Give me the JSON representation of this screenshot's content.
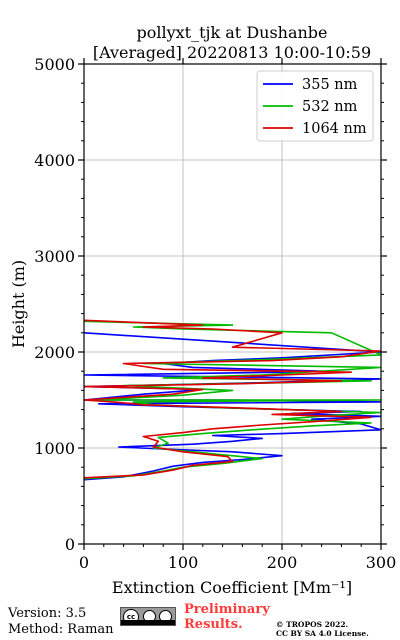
{
  "chart_data": {
    "type": "line",
    "title_line1": "pollyxt_tjk at Dushanbe",
    "title_line2": "[Averaged] 20220813 10:00-10:59",
    "xlabel": "Extinction Coefficient [Mm⁻¹]",
    "ylabel": "Height (m)",
    "xlim": [
      0,
      300
    ],
    "ylim": [
      0,
      5000
    ],
    "x_ticks": [
      "0",
      "100",
      "200",
      "300"
    ],
    "y_ticks": [
      "0",
      "1000",
      "2000",
      "3000",
      "4000",
      "5000"
    ],
    "grid": true,
    "legend_position": "top-right",
    "series": [
      {
        "name": "355 nm",
        "color": "#0000ff",
        "points": [
          [
            0,
            670
          ],
          [
            40,
            700
          ],
          [
            70,
            760
          ],
          [
            90,
            810
          ],
          [
            120,
            850
          ],
          [
            160,
            880
          ],
          [
            200,
            920
          ],
          [
            150,
            960
          ],
          [
            80,
            990
          ],
          [
            35,
            1010
          ],
          [
            110,
            1040
          ],
          [
            150,
            1070
          ],
          [
            180,
            1100
          ],
          [
            130,
            1130
          ],
          [
            200,
            1150
          ],
          [
            250,
            1170
          ],
          [
            300,
            1190
          ],
          [
            280,
            1250
          ],
          [
            230,
            1300
          ],
          [
            300,
            1330
          ],
          [
            210,
            1360
          ],
          [
            280,
            1380
          ],
          [
            170,
            1410
          ],
          [
            100,
            1430
          ],
          [
            15,
            1460
          ],
          [
            300,
            1480
          ],
          [
            150,
            1500
          ],
          [
            0,
            1500
          ],
          [
            60,
            1560
          ],
          [
            120,
            1610
          ],
          [
            0,
            1640
          ],
          [
            180,
            1680
          ],
          [
            300,
            1720
          ],
          [
            0,
            1760
          ],
          [
            200,
            1790
          ],
          [
            240,
            1800
          ],
          [
            110,
            1840
          ],
          [
            80,
            1880
          ],
          [
            130,
            1910
          ],
          [
            200,
            1940
          ],
          [
            300,
            2000
          ],
          [
            0,
            2200
          ]
        ]
      },
      {
        "name": "532 nm",
        "color": "#00bb00",
        "points": [
          [
            0,
            680
          ],
          [
            50,
            710
          ],
          [
            80,
            760
          ],
          [
            100,
            800
          ],
          [
            140,
            840
          ],
          [
            180,
            890
          ],
          [
            120,
            950
          ],
          [
            70,
            1000
          ],
          [
            85,
            1050
          ],
          [
            75,
            1110
          ],
          [
            120,
            1150
          ],
          [
            170,
            1190
          ],
          [
            230,
            1230
          ],
          [
            290,
            1260
          ],
          [
            200,
            1300
          ],
          [
            250,
            1340
          ],
          [
            300,
            1370
          ],
          [
            140,
            1420
          ],
          [
            70,
            1450
          ],
          [
            50,
            1480
          ],
          [
            300,
            1500
          ],
          [
            10,
            1500
          ],
          [
            100,
            1550
          ],
          [
            150,
            1600
          ],
          [
            40,
            1650
          ],
          [
            200,
            1680
          ],
          [
            290,
            1700
          ],
          [
            80,
            1730
          ],
          [
            180,
            1760
          ],
          [
            240,
            1800
          ],
          [
            300,
            1840
          ],
          [
            60,
            1880
          ],
          [
            180,
            1920
          ],
          [
            300,
            1970
          ],
          [
            250,
            2200
          ],
          [
            100,
            2240
          ],
          [
            50,
            2260
          ],
          [
            150,
            2280
          ],
          [
            0,
            2320
          ]
        ]
      },
      {
        "name": "1064 nm",
        "color": "#dd0000",
        "points": [
          [
            0,
            690
          ],
          [
            60,
            720
          ],
          [
            90,
            770
          ],
          [
            110,
            820
          ],
          [
            150,
            860
          ],
          [
            145,
            910
          ],
          [
            100,
            960
          ],
          [
            70,
            1010
          ],
          [
            75,
            1070
          ],
          [
            60,
            1120
          ],
          [
            100,
            1160
          ],
          [
            130,
            1200
          ],
          [
            180,
            1240
          ],
          [
            240,
            1280
          ],
          [
            290,
            1320
          ],
          [
            190,
            1350
          ],
          [
            260,
            1380
          ],
          [
            150,
            1420
          ],
          [
            60,
            1450
          ],
          [
            30,
            1480
          ],
          [
            0,
            1500
          ],
          [
            90,
            1560
          ],
          [
            120,
            1610
          ],
          [
            0,
            1640
          ],
          [
            160,
            1670
          ],
          [
            260,
            1700
          ],
          [
            120,
            1730
          ],
          [
            200,
            1760
          ],
          [
            270,
            1790
          ],
          [
            80,
            1820
          ],
          [
            40,
            1880
          ],
          [
            190,
            1910
          ],
          [
            260,
            1950
          ],
          [
            300,
            2010
          ],
          [
            150,
            2050
          ],
          [
            200,
            2200
          ],
          [
            130,
            2240
          ],
          [
            60,
            2260
          ],
          [
            120,
            2280
          ],
          [
            0,
            2330
          ]
        ]
      }
    ]
  },
  "footer": {
    "version": "Version: 3.5",
    "method": "Method: Raman",
    "preliminary_line1": "Preliminary",
    "preliminary_line2": "Results.",
    "copyright_line1": "© TROPOS 2022.",
    "copyright_line2": "CC BY SA 4.0 License."
  }
}
